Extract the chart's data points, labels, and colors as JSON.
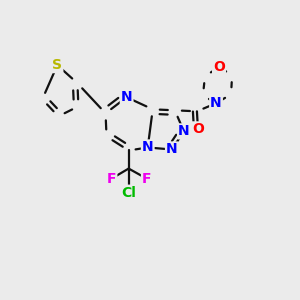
{
  "background_color": "#ebebeb",
  "figsize": [
    3.0,
    3.0
  ],
  "dpi": 100,
  "atoms": {
    "S": {
      "color": "#b8b800",
      "fontsize": 10,
      "fontweight": "bold"
    },
    "N": {
      "color": "#0000ff",
      "fontsize": 10,
      "fontweight": "bold"
    },
    "O": {
      "color": "#ff0000",
      "fontsize": 10,
      "fontweight": "bold"
    },
    "F": {
      "color": "#ee00ee",
      "fontsize": 10,
      "fontweight": "bold"
    },
    "Cl": {
      "color": "#00bb00",
      "fontsize": 10,
      "fontweight": "bold"
    }
  },
  "bond_color": "#111111",
  "bond_lw": 1.6
}
